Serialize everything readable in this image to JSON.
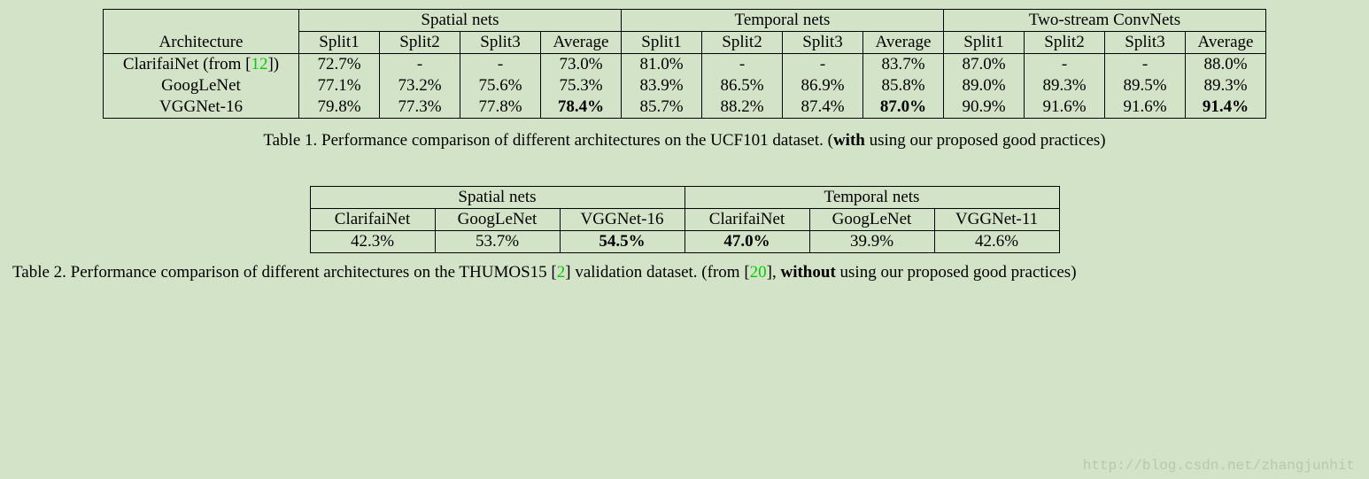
{
  "background_color": "#d3e3c7",
  "text_color": "#000000",
  "cite_color": "#00cc00",
  "font_family": "Times New Roman",
  "base_fontsize_pt": 14,
  "table1": {
    "type": "table",
    "groups": [
      "Spatial nets",
      "Temporal nets",
      "Two-stream ConvNets"
    ],
    "header_label": "Architecture",
    "sub_headers": [
      "Split1",
      "Split2",
      "Split3",
      "Average"
    ],
    "rows": [
      {
        "label": {
          "pre": "ClarifaiNet (from [",
          "cite": "12",
          "post": "])"
        },
        "spatial": [
          "72.7%",
          "-",
          "-",
          "73.0%"
        ],
        "temporal": [
          "81.0%",
          "-",
          "-",
          "83.7%"
        ],
        "twostream": [
          "87.0%",
          "-",
          "-",
          "88.0%"
        ],
        "bold_avg": [
          false,
          false,
          false
        ]
      },
      {
        "label": {
          "pre": "GoogLeNet",
          "cite": "",
          "post": ""
        },
        "spatial": [
          "77.1%",
          "73.2%",
          "75.6%",
          "75.3%"
        ],
        "temporal": [
          "83.9%",
          "86.5%",
          "86.9%",
          "85.8%"
        ],
        "twostream": [
          "89.0%",
          "89.3%",
          "89.5%",
          "89.3%"
        ],
        "bold_avg": [
          false,
          false,
          false
        ]
      },
      {
        "label": {
          "pre": "VGGNet-16",
          "cite": "",
          "post": ""
        },
        "spatial": [
          "79.8%",
          "77.3%",
          "77.8%",
          "78.4%"
        ],
        "temporal": [
          "85.7%",
          "88.2%",
          "87.4%",
          "87.0%"
        ],
        "twostream": [
          "90.9%",
          "91.6%",
          "91.6%",
          "91.4%"
        ],
        "bold_avg": [
          true,
          true,
          true
        ]
      }
    ],
    "caption_pre": "Table 1. Performance comparison of different architectures on the UCF101 dataset. (",
    "caption_bold": "with",
    "caption_post": " using our proposed good practices)"
  },
  "table2": {
    "type": "table",
    "groups": [
      "Spatial nets",
      "Temporal nets"
    ],
    "sub_headers_spatial": [
      "ClarifaiNet",
      "GoogLeNet",
      "VGGNet-16"
    ],
    "sub_headers_temporal": [
      "ClarifaiNet",
      "GoogLeNet",
      "VGGNet-11"
    ],
    "values_spatial": [
      "42.3%",
      "53.7%",
      "54.5%"
    ],
    "values_temporal": [
      "47.0%",
      "39.9%",
      "42.6%"
    ],
    "bold_spatial": [
      false,
      false,
      true
    ],
    "bold_temporal": [
      true,
      false,
      false
    ],
    "caption_pre": "Table 2. Performance comparison of different architectures on the THUMOS15 [",
    "caption_cite1": "2",
    "caption_mid": "] validation dataset.  (from [",
    "caption_cite2": "20",
    "caption_post1": "], ",
    "caption_bold": "without",
    "caption_post2": " using our proposed good practices)"
  },
  "watermark": "http://blog.csdn.net/zhangjunhit"
}
